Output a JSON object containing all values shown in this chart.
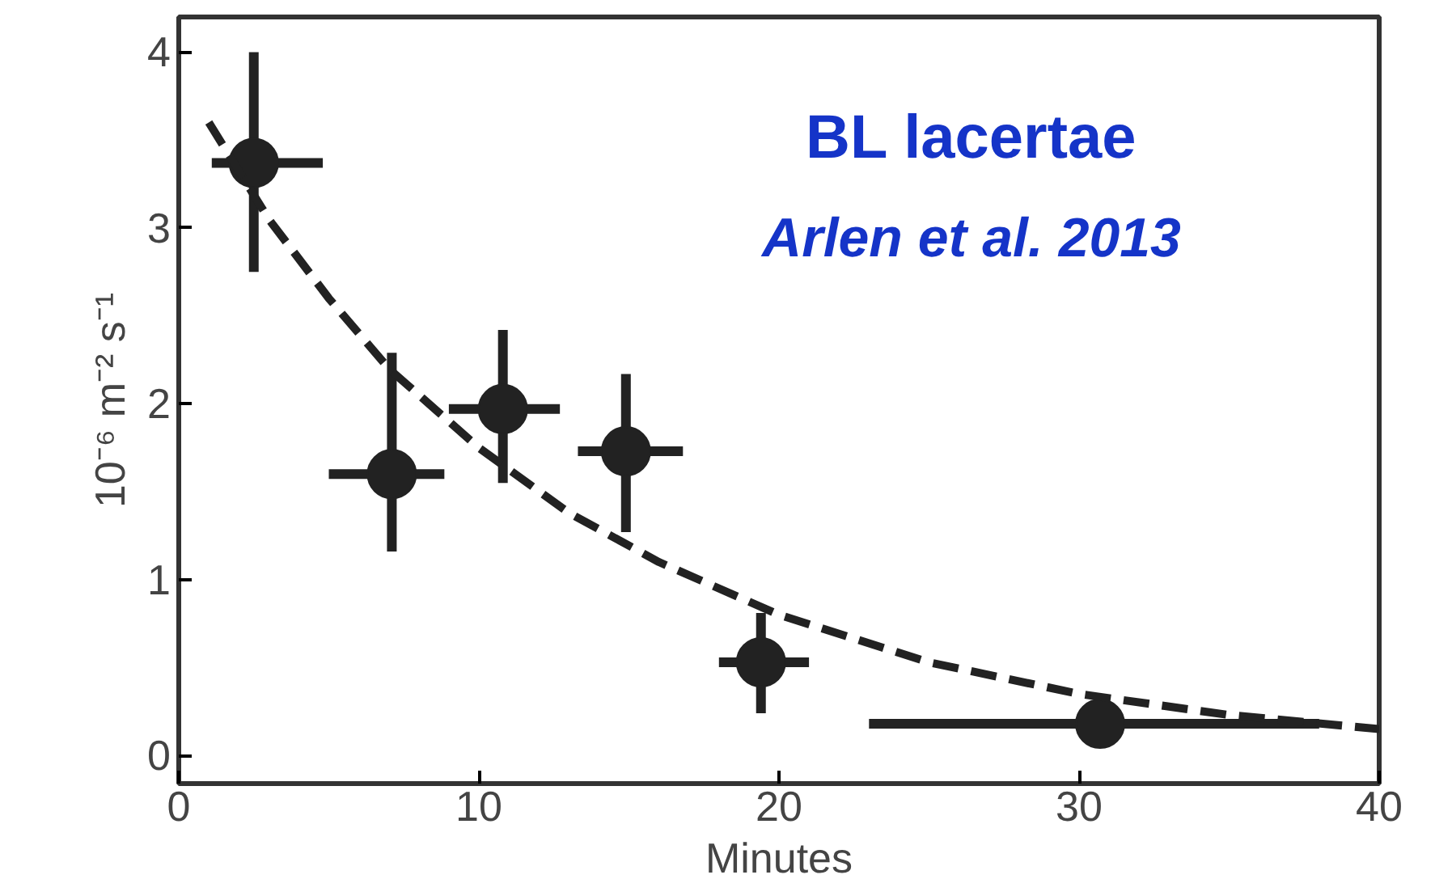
{
  "chart_data": {
    "type": "scatter",
    "xlabel": "Minutes",
    "ylabel": "10⁻⁶ m⁻² s⁻¹",
    "annotations": [
      "BL lacertae",
      "Arlen et al. 2013"
    ],
    "xlim": [
      0,
      40
    ],
    "ylim": [
      -0.16,
      4.2
    ],
    "xticks": [
      0,
      10,
      20,
      30,
      40
    ],
    "yticks": [
      0,
      1,
      2,
      3,
      4
    ],
    "grid": false,
    "series": [
      {
        "color": "#222222",
        "marker": "circle",
        "x": [
          2.5,
          7.1,
          10.8,
          14.9,
          19.4,
          30.7
        ],
        "values": [
          3.37,
          1.6,
          1.97,
          1.73,
          0.53,
          0.18
        ],
        "errors": [
          [
            2.75,
            4.0
          ],
          [
            1.16,
            2.29
          ],
          [
            1.55,
            2.42
          ],
          [
            1.27,
            2.17
          ],
          [
            0.24,
            0.81
          ],
          null
        ],
        "xerrors": [
          [
            1.1,
            4.8
          ],
          [
            5.0,
            8.85
          ],
          [
            9.0,
            12.7
          ],
          [
            13.3,
            16.8
          ],
          [
            18.0,
            21.0
          ],
          [
            23.0,
            38.0
          ]
        ]
      },
      {
        "type": "line",
        "color": "#222222",
        "line_style": "dashed",
        "marker": "none",
        "x": [
          1,
          3,
          5,
          7,
          10,
          13,
          16,
          20,
          25,
          30,
          35,
          40
        ],
        "values": [
          3.6,
          3.05,
          2.6,
          2.2,
          1.75,
          1.38,
          1.1,
          0.8,
          0.53,
          0.35,
          0.23,
          0.15
        ]
      }
    ]
  }
}
